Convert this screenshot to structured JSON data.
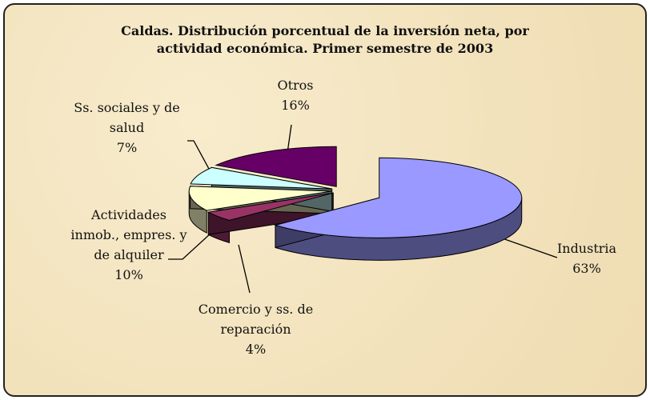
{
  "chart_data": {
    "type": "pie3d",
    "title": "Caldas. Distribución porcentual de la inversión neta, por actividad económica. Primer semestre de 2003",
    "categories": [
      "Industria",
      "Comercio y ss. de reparación",
      "Actividades inmob., empres. y de alquiler",
      "Ss. sociales y de salud",
      "Otros"
    ],
    "values": [
      63,
      4,
      10,
      7,
      16
    ],
    "value_labels": [
      "63%",
      "4%",
      "10%",
      "7%",
      "16%"
    ],
    "colors": [
      "#9999ff",
      "#993366",
      "#ffffcc",
      "#ccffff",
      "#660066"
    ]
  }
}
